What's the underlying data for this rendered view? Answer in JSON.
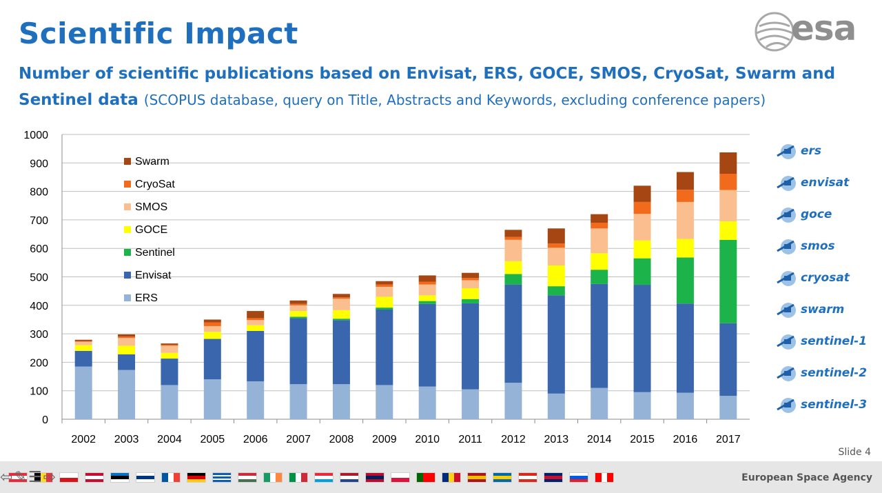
{
  "header": {
    "title": "Scientific Impact",
    "subtitle_main": "Number of scientific publications based on Envisat, ERS, GOCE, SMOS, CryoSat, Swarm and Sentinel data",
    "subtitle_note": "(SCOPUS database, query on Title, Abstracts and Keywords, excluding conference papers)",
    "logo_text": "esa"
  },
  "mission_logos": [
    "ers",
    "envisat",
    "goce",
    "smos",
    "cryosat",
    "swarm",
    "sentinel-1",
    "sentinel-2",
    "sentinel-3"
  ],
  "slide_label": "Slide  4",
  "footer": {
    "agency": "European Space Agency",
    "flags": [
      "Austria",
      "Belgium",
      "Czech Republic",
      "Denmark",
      "Estonia",
      "Finland",
      "France",
      "Germany",
      "Greece",
      "Hungary",
      "Ireland",
      "Italy",
      "Luxembourg",
      "Netherlands",
      "Norway",
      "Poland",
      "Portugal",
      "Romania",
      "Spain",
      "Sweden",
      "Switzerland",
      "United Kingdom",
      "Slovenia",
      "Canada"
    ]
  },
  "colors": {
    "title": "#1f6fbf",
    "ERS": "#95b3d7",
    "Envisat": "#3a66ad",
    "Sentinel": "#1bb34a",
    "GOCE": "#ffff00",
    "SMOS": "#fbbf8f",
    "CryoSat": "#f26b1d",
    "Swarm": "#a54613"
  },
  "chart_data": {
    "type": "bar",
    "stacked": true,
    "categories": [
      "2002",
      "2003",
      "2004",
      "2005",
      "2006",
      "2007",
      "2008",
      "2009",
      "2010",
      "2011",
      "2012",
      "2013",
      "2014",
      "2015",
      "2016",
      "2017"
    ],
    "ylim": [
      0,
      1000
    ],
    "yticks": [
      0,
      100,
      200,
      300,
      400,
      500,
      600,
      700,
      800,
      900,
      1000
    ],
    "grid": "horizontal",
    "legend_position": "top-left",
    "series": [
      {
        "name": "ERS",
        "values": [
          185,
          173,
          120,
          140,
          133,
          123,
          123,
          120,
          115,
          105,
          128,
          90,
          110,
          95,
          93,
          82
        ]
      },
      {
        "name": "Envisat",
        "values": [
          55,
          55,
          93,
          142,
          177,
          232,
          225,
          265,
          290,
          302,
          345,
          345,
          365,
          377,
          313,
          255
        ]
      },
      {
        "name": "Sentinel",
        "values": [
          0,
          0,
          0,
          0,
          0,
          5,
          5,
          7,
          10,
          15,
          37,
          32,
          50,
          93,
          162,
          293
        ]
      },
      {
        "name": "GOCE",
        "values": [
          20,
          30,
          20,
          25,
          20,
          20,
          30,
          38,
          20,
          38,
          45,
          73,
          58,
          63,
          65,
          65
        ]
      },
      {
        "name": "SMOS",
        "values": [
          12,
          27,
          25,
          20,
          18,
          20,
          40,
          35,
          38,
          28,
          75,
          62,
          87,
          93,
          130,
          110
        ]
      },
      {
        "name": "CryoSat",
        "values": [
          2,
          5,
          3,
          13,
          7,
          5,
          5,
          8,
          10,
          8,
          10,
          15,
          20,
          42,
          43,
          57
        ]
      },
      {
        "name": "Swarm",
        "values": [
          5,
          8,
          5,
          10,
          25,
          12,
          12,
          12,
          22,
          18,
          25,
          53,
          30,
          57,
          62,
          75
        ]
      }
    ]
  }
}
